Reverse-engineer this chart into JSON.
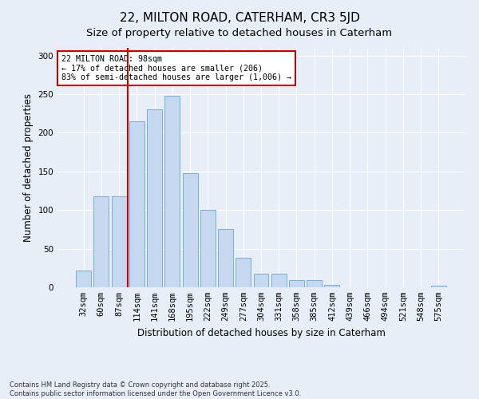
{
  "title": "22, MILTON ROAD, CATERHAM, CR3 5JD",
  "subtitle": "Size of property relative to detached houses in Caterham",
  "xlabel": "Distribution of detached houses by size in Caterham",
  "ylabel": "Number of detached properties",
  "categories": [
    "32sqm",
    "60sqm",
    "87sqm",
    "114sqm",
    "141sqm",
    "168sqm",
    "195sqm",
    "222sqm",
    "249sqm",
    "277sqm",
    "304sqm",
    "331sqm",
    "358sqm",
    "385sqm",
    "412sqm",
    "439sqm",
    "466sqm",
    "494sqm",
    "521sqm",
    "548sqm",
    "575sqm"
  ],
  "values": [
    22,
    118,
    118,
    215,
    230,
    248,
    148,
    100,
    75,
    38,
    18,
    18,
    9,
    9,
    3,
    0,
    0,
    0,
    0,
    0,
    2
  ],
  "bar_color": "#c5d8f0",
  "bar_edge_color": "#7aaed6",
  "vline_x_index": 2.5,
  "vline_color": "#cc0000",
  "annotation_text": "22 MILTON ROAD: 98sqm\n← 17% of detached houses are smaller (206)\n83% of semi-detached houses are larger (1,006) →",
  "annotation_box_color": "#ffffff",
  "annotation_box_edge": "#cc0000",
  "ylim": [
    0,
    310
  ],
  "yticks": [
    0,
    50,
    100,
    150,
    200,
    250,
    300
  ],
  "footer": "Contains HM Land Registry data © Crown copyright and database right 2025.\nContains public sector information licensed under the Open Government Licence v3.0.",
  "bg_color": "#e8eef8",
  "title_fontsize": 11,
  "axis_label_fontsize": 8.5,
  "tick_fontsize": 7.5,
  "footer_fontsize": 6.0
}
